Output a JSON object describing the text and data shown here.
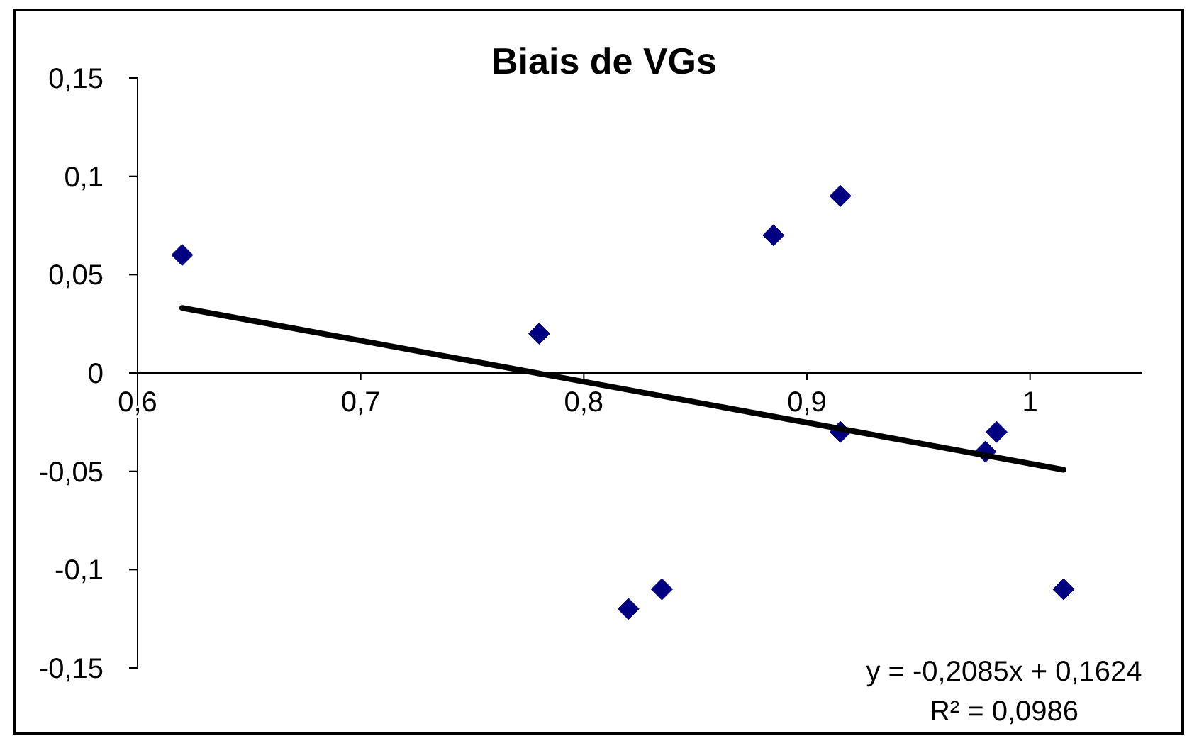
{
  "chart_data": {
    "type": "scatter",
    "title": "Biais de VGs",
    "xlim": [
      0.6,
      1.05
    ],
    "xticks": [
      {
        "value": 0.6,
        "label": "0,6"
      },
      {
        "value": 0.7,
        "label": "0,7"
      },
      {
        "value": 0.8,
        "label": "0,8"
      },
      {
        "value": 0.9,
        "label": "0,9"
      },
      1
    ],
    "ylim": [
      -0.15,
      0.15
    ],
    "yticks": [
      {
        "value": -0.15,
        "label": "-0,15"
      },
      {
        "value": -0.1,
        "label": "-0,1"
      },
      {
        "value": -0.05,
        "label": "-0,05"
      },
      0,
      {
        "value": 0.05,
        "label": "0,05"
      },
      {
        "value": 0.1,
        "label": "0,1"
      },
      {
        "value": 0.15,
        "label": "0,15"
      }
    ],
    "series": [
      {
        "color": "#000080",
        "marker": "diamond",
        "x": [
          0.62,
          0.78,
          0.82,
          0.835,
          0.885,
          0.915,
          0.915,
          0.98,
          0.985,
          1.015
        ],
        "values": [
          0.06,
          0.02,
          -0.12,
          -0.11,
          0.07,
          0.09,
          -0.03,
          -0.04,
          -0.03,
          -0.11
        ]
      },
      {
        "type": "line",
        "color": "#000000",
        "line_style": "solid",
        "x": [
          0.62,
          1.015
        ],
        "values": [
          0.0331,
          -0.0492
        ]
      }
    ],
    "annotations": [
      "y = -0,2085x + 0,1624",
      "R² = 0,0986"
    ]
  }
}
